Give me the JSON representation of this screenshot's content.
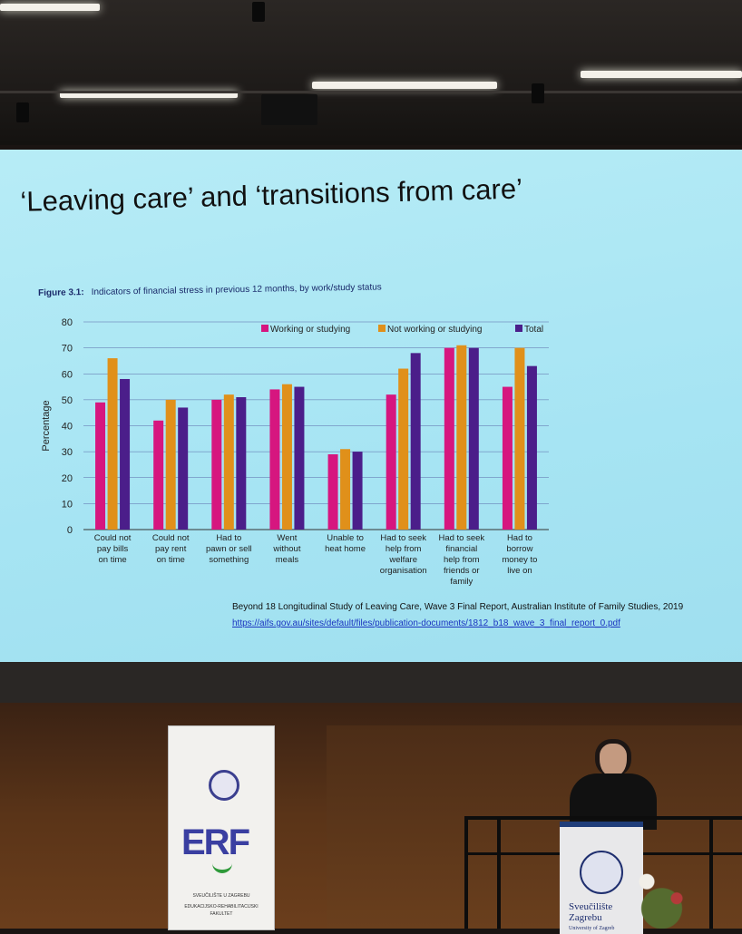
{
  "slide": {
    "title": "‘Leaving care’ and ‘transitions from care’",
    "figure_label": "Figure 3.1:",
    "figure_caption": "Indicators of financial stress in previous 12 months, by work/study status",
    "source": "Beyond 18 Longitudinal Study of Leaving Care, Wave 3 Final Report, Australian Institute of Family Studies, 2019",
    "source_url": "https://aifs.gov.au/sites/default/files/publication-documents/1812_b18_wave_3_final_report_0.pdf"
  },
  "chart_data": {
    "type": "bar",
    "ylabel": "Percentage",
    "ylim": [
      0,
      80
    ],
    "yticks": [
      0,
      10,
      20,
      30,
      40,
      50,
      60,
      70,
      80
    ],
    "grid": true,
    "legend_position": "top-right",
    "categories": [
      [
        "Could not",
        "pay bills",
        "on time"
      ],
      [
        "Could not",
        "pay rent",
        "on time"
      ],
      [
        "Had to",
        "pawn or sell",
        "something"
      ],
      [
        "Went",
        "without",
        "meals"
      ],
      [
        "Unable to",
        "heat home"
      ],
      [
        "Had to seek",
        "help from",
        "welfare",
        "organisation"
      ],
      [
        "Had to seek",
        "financial",
        "help from",
        "friends or",
        "family"
      ],
      [
        "Had to",
        "borrow",
        "money to",
        "live on"
      ]
    ],
    "series": [
      {
        "name": "Working or studying",
        "color": "#d6167f",
        "values": [
          49,
          42,
          50,
          54,
          29,
          52,
          70,
          55
        ]
      },
      {
        "name": "Not working or studying",
        "color": "#e0901a",
        "values": [
          66,
          50,
          52,
          56,
          31,
          62,
          71,
          70
        ]
      },
      {
        "name": "Total",
        "color": "#4b1e8a",
        "values": [
          58,
          47,
          51,
          55,
          30,
          68,
          70,
          63
        ]
      }
    ]
  },
  "banner": {
    "logo": "ERF",
    "line1": "SVEUČILIŠTE U ZAGREBU",
    "line2": "EDUKACIJSKO-REHABILITACIJSKI",
    "line3": "FAKULTET"
  },
  "podium": {
    "line1": "Sveučilište",
    "line2": "Zagrebu",
    "line3": "University of Zagreb"
  }
}
